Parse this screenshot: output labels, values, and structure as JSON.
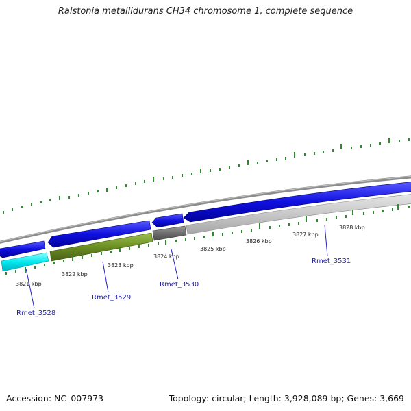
{
  "title": "Ralstonia metallidurans CH34 chromosome 1, complete sequence",
  "footer": {
    "accession": "Accession: NC_007973",
    "summary": "Topology: circular; Length: 3,928,089 bp; Genes: 3,669"
  },
  "kbp_labels": [
    "3821 kbp",
    "3822 kbp",
    "3823 kbp",
    "3824 kbp",
    "3825 kbp",
    "3826 kbp",
    "3827 kbp",
    "3828 kbp"
  ],
  "gene_labels": [
    "Rmet_3528",
    "Rmet_3529",
    "Rmet_3530",
    "Rmet_3531"
  ],
  "colors": {
    "forward_gene": "#1010e0",
    "cyan_gene": "#00e8ee",
    "olive_gene": "#6b8e23",
    "dark_gray_gene": "#6e6e6e",
    "light_gray_gene": "#c8c8c8",
    "backbone": "#8c8c8c",
    "ticks": "#2e8b2e",
    "label_lines": "#2020c0"
  }
}
